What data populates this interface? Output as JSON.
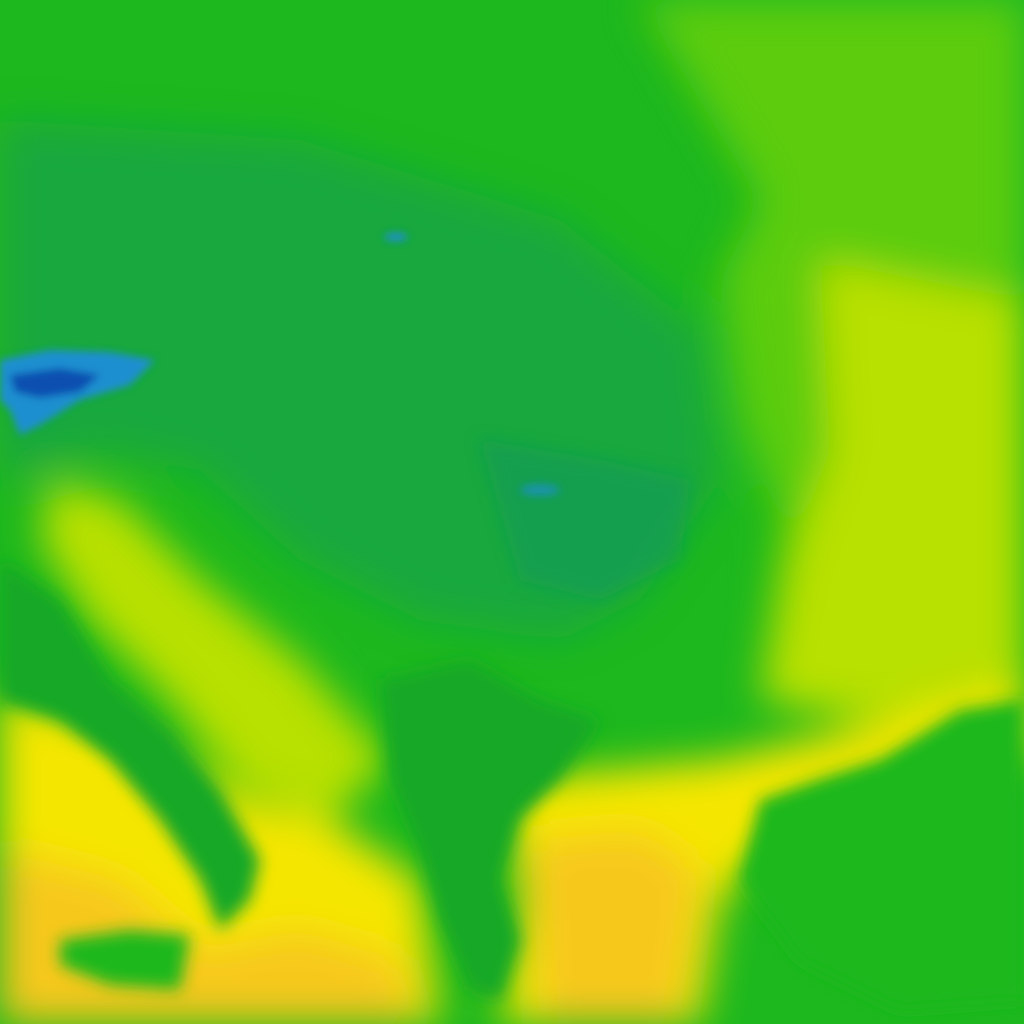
{
  "map": {
    "kind": "temperature-raster-tile",
    "palette": {
      "coldest": "#0a4fb0",
      "cold": "#1a8fd0",
      "cool": "#149a5a",
      "mild_dark": "#14a828",
      "mild": "#1db81e",
      "warm_green": "#5ccc0e",
      "yellow_green": "#b8e000",
      "yellow": "#f5e600",
      "warm": "#f7c81a",
      "hot": "#f2b02e"
    }
  }
}
